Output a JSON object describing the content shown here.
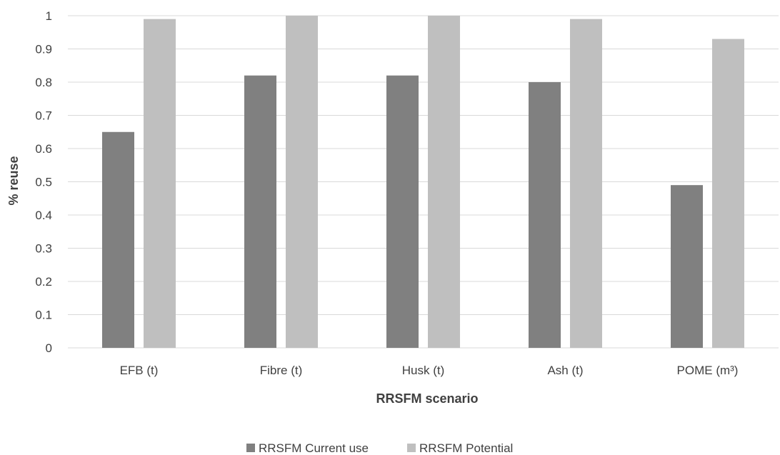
{
  "chart_data": {
    "type": "bar",
    "categories": [
      "EFB (t)",
      "Fibre (t)",
      "Husk (t)",
      "Ash (t)",
      "POME (m³)"
    ],
    "series": [
      {
        "name": "RRSFM Current use",
        "values": [
          0.65,
          0.82,
          0.82,
          0.8,
          0.49
        ],
        "color": "#808080"
      },
      {
        "name": "RRSFM Potential",
        "values": [
          0.99,
          1.0,
          1.0,
          0.99,
          0.93
        ],
        "color": "#bfbfbf"
      }
    ],
    "xlabel": "RRSFM scenario",
    "ylabel": "% reuse",
    "ylim": [
      0,
      1
    ],
    "yticks": [
      "0",
      "0.1",
      "0.2",
      "0.3",
      "0.4",
      "0.5",
      "0.6",
      "0.7",
      "0.8",
      "0.9",
      "1"
    ],
    "grid": true,
    "legend_position": "bottom"
  }
}
